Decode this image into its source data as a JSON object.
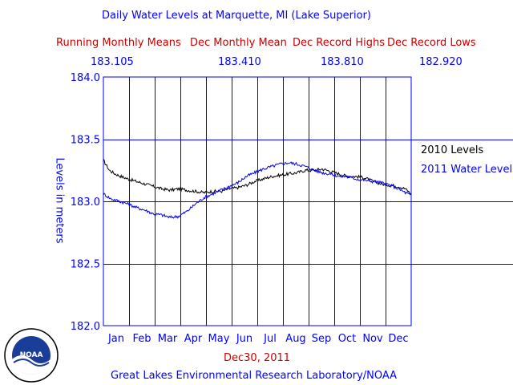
{
  "header": {
    "title": "Daily Water Levels at Marquette, MI (Lake Superior)",
    "running_label": "Running Monthly Means",
    "dec_mean_label": "Dec Monthly Mean",
    "dec_high_label": "Dec Record Highs",
    "dec_low_label": "Dec Record Lows",
    "running_value": "183.105",
    "dec_mean_value": "183.410",
    "dec_high_value": "183.810",
    "dec_low_value": "182.920"
  },
  "footer": {
    "date": "Dec30, 2011",
    "credit": "Great Lakes Environmental Research Laboratory/NOAA",
    "logo_text": "NOAA"
  },
  "colors": {
    "blue": "#0000ff",
    "red": "#cc0000",
    "black": "#000000"
  },
  "chart_data": {
    "type": "line",
    "ylabel": "Levels in meters",
    "ylim": [
      182.0,
      184.0
    ],
    "yticks": [
      "184.0",
      "183.5",
      "183.0",
      "182.5",
      "182.0"
    ],
    "categories": [
      "Jan",
      "Feb",
      "Mar",
      "Apr",
      "May",
      "Jun",
      "Jul",
      "Aug",
      "Sep",
      "Oct",
      "Nov",
      "Dec"
    ],
    "grid": true,
    "legend": "right",
    "series": [
      {
        "name": "2010 Levels",
        "color": "#000000",
        "x": [
          1,
          8,
          15,
          22,
          30,
          40,
          50,
          60,
          70,
          80,
          90,
          100,
          110,
          120,
          130,
          140,
          150,
          160,
          170,
          180,
          190,
          200,
          210,
          220,
          230,
          240,
          250,
          260,
          270,
          280,
          290,
          300,
          310,
          320,
          330,
          340,
          350,
          358,
          365
        ],
        "y": [
          183.33,
          183.25,
          183.22,
          183.2,
          183.18,
          183.16,
          183.14,
          183.12,
          183.1,
          183.09,
          183.1,
          183.09,
          183.08,
          183.07,
          183.08,
          183.08,
          183.1,
          183.11,
          183.13,
          183.16,
          183.18,
          183.2,
          183.21,
          183.22,
          183.23,
          183.25,
          183.25,
          183.26,
          183.24,
          183.22,
          183.2,
          183.2,
          183.19,
          183.16,
          183.14,
          183.13,
          183.12,
          183.1,
          183.06
        ]
      },
      {
        "name": "2011 Water Level",
        "color": "#0000ff",
        "x": [
          1,
          10,
          20,
          30,
          40,
          50,
          60,
          70,
          80,
          90,
          100,
          110,
          120,
          130,
          140,
          150,
          160,
          170,
          180,
          190,
          200,
          210,
          220,
          230,
          240,
          250,
          260,
          270,
          280,
          290,
          300,
          310,
          320,
          330,
          340,
          350,
          358,
          364
        ],
        "y": [
          183.06,
          183.02,
          183.0,
          182.98,
          182.95,
          182.93,
          182.9,
          182.89,
          182.87,
          182.88,
          182.92,
          182.98,
          183.03,
          183.06,
          183.09,
          183.12,
          183.15,
          183.2,
          183.23,
          183.26,
          183.28,
          183.3,
          183.31,
          183.3,
          183.28,
          183.25,
          183.23,
          183.22,
          183.2,
          183.2,
          183.18,
          183.17,
          183.16,
          183.15,
          183.13,
          183.1,
          183.07,
          183.05
        ]
      }
    ]
  }
}
